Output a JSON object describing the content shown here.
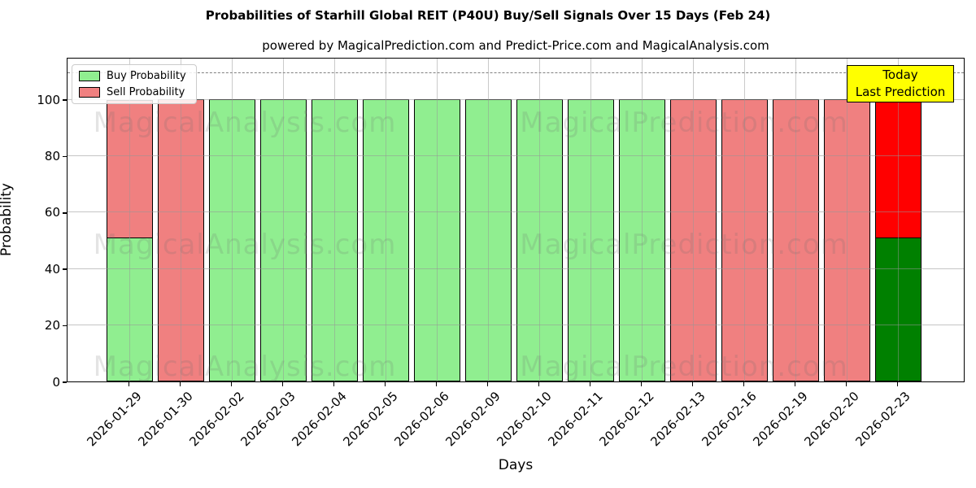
{
  "chart_data": {
    "type": "bar",
    "stacked": true,
    "title": "Probabilities of Starhill Global REIT (P40U) Buy/Sell Signals Over 15 Days (Feb 24)",
    "subtitle": "powered by MagicalPrediction.com and Predict-Price.com and MagicalAnalysis.com",
    "xlabel": "Days",
    "ylabel": "Probability",
    "ylim": [
      0,
      115
    ],
    "yticks": [
      0,
      20,
      40,
      60,
      80,
      100
    ],
    "grid": true,
    "dashed_line_y": 110,
    "legend_position": "upper left",
    "categories": [
      "2026-01-29",
      "2026-01-30",
      "2026-02-02",
      "2026-02-03",
      "2026-02-04",
      "2026-02-05",
      "2026-02-06",
      "2026-02-09",
      "2026-02-10",
      "2026-02-11",
      "2026-02-12",
      "2026-02-13",
      "2026-02-16",
      "2026-02-19",
      "2026-02-20",
      "2026-02-23"
    ],
    "series": [
      {
        "name": "Buy Probability",
        "color": "#90EE90",
        "values": [
          51,
          0,
          100,
          100,
          100,
          100,
          100,
          100,
          100,
          100,
          100,
          0,
          0,
          0,
          0,
          51
        ]
      },
      {
        "name": "Sell Probability",
        "color": "#F08080",
        "values": [
          49,
          100,
          0,
          0,
          0,
          0,
          0,
          0,
          0,
          0,
          0,
          100,
          100,
          100,
          100,
          49
        ]
      }
    ],
    "today_bar": {
      "index": 15,
      "buy_color": "#008000",
      "sell_color": "#FF0000"
    },
    "annotation": {
      "lines": [
        "Today",
        "Last Prediction"
      ],
      "bg_color": "#FFFF00"
    },
    "watermarks": [
      "MagicalAnalysis.com",
      "MagicalPrediction.com"
    ],
    "colors": {
      "grid": "#b0b0b0",
      "dashed_line": "#7f7f7f",
      "bar_edge": "#000000",
      "background": "#ffffff"
    }
  }
}
